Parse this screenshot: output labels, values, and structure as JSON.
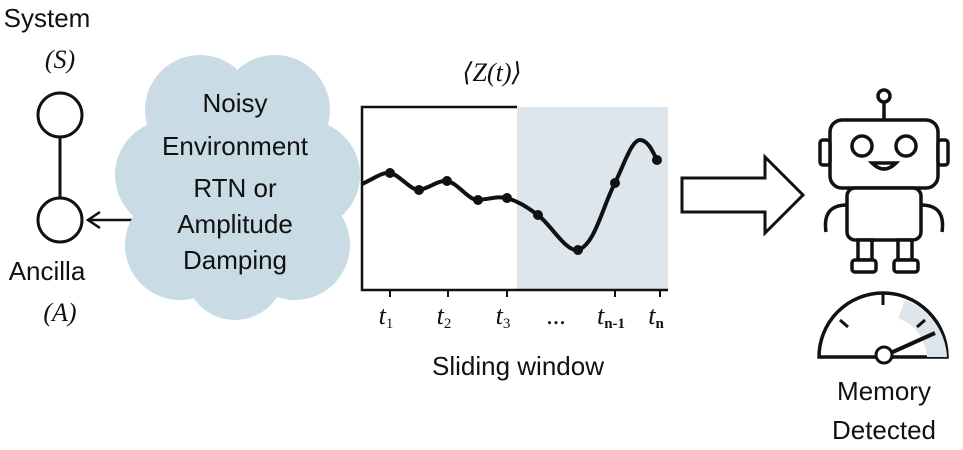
{
  "system": {
    "label": "System",
    "symbol": "(S)"
  },
  "ancilla": {
    "label": "Ancilla",
    "symbol": "(A)"
  },
  "environment": {
    "lines": [
      "Noisy",
      "Environment",
      "RTN or",
      "Amplitude",
      "Damping"
    ]
  },
  "plot": {
    "title": "⟨Z(t)⟩",
    "ticks": [
      {
        "symbol": "t",
        "subscript": "1"
      },
      {
        "symbol": "t",
        "subscript": "2"
      },
      {
        "symbol": "t",
        "subscript": "3"
      },
      {
        "symbol": "...",
        "subscript": ""
      },
      {
        "symbol": "t",
        "subscript": "n-1"
      },
      {
        "symbol": "t",
        "subscript": "n"
      }
    ],
    "caption": "Sliding window"
  },
  "result": {
    "lines": [
      "Memory",
      "Detected"
    ]
  }
}
